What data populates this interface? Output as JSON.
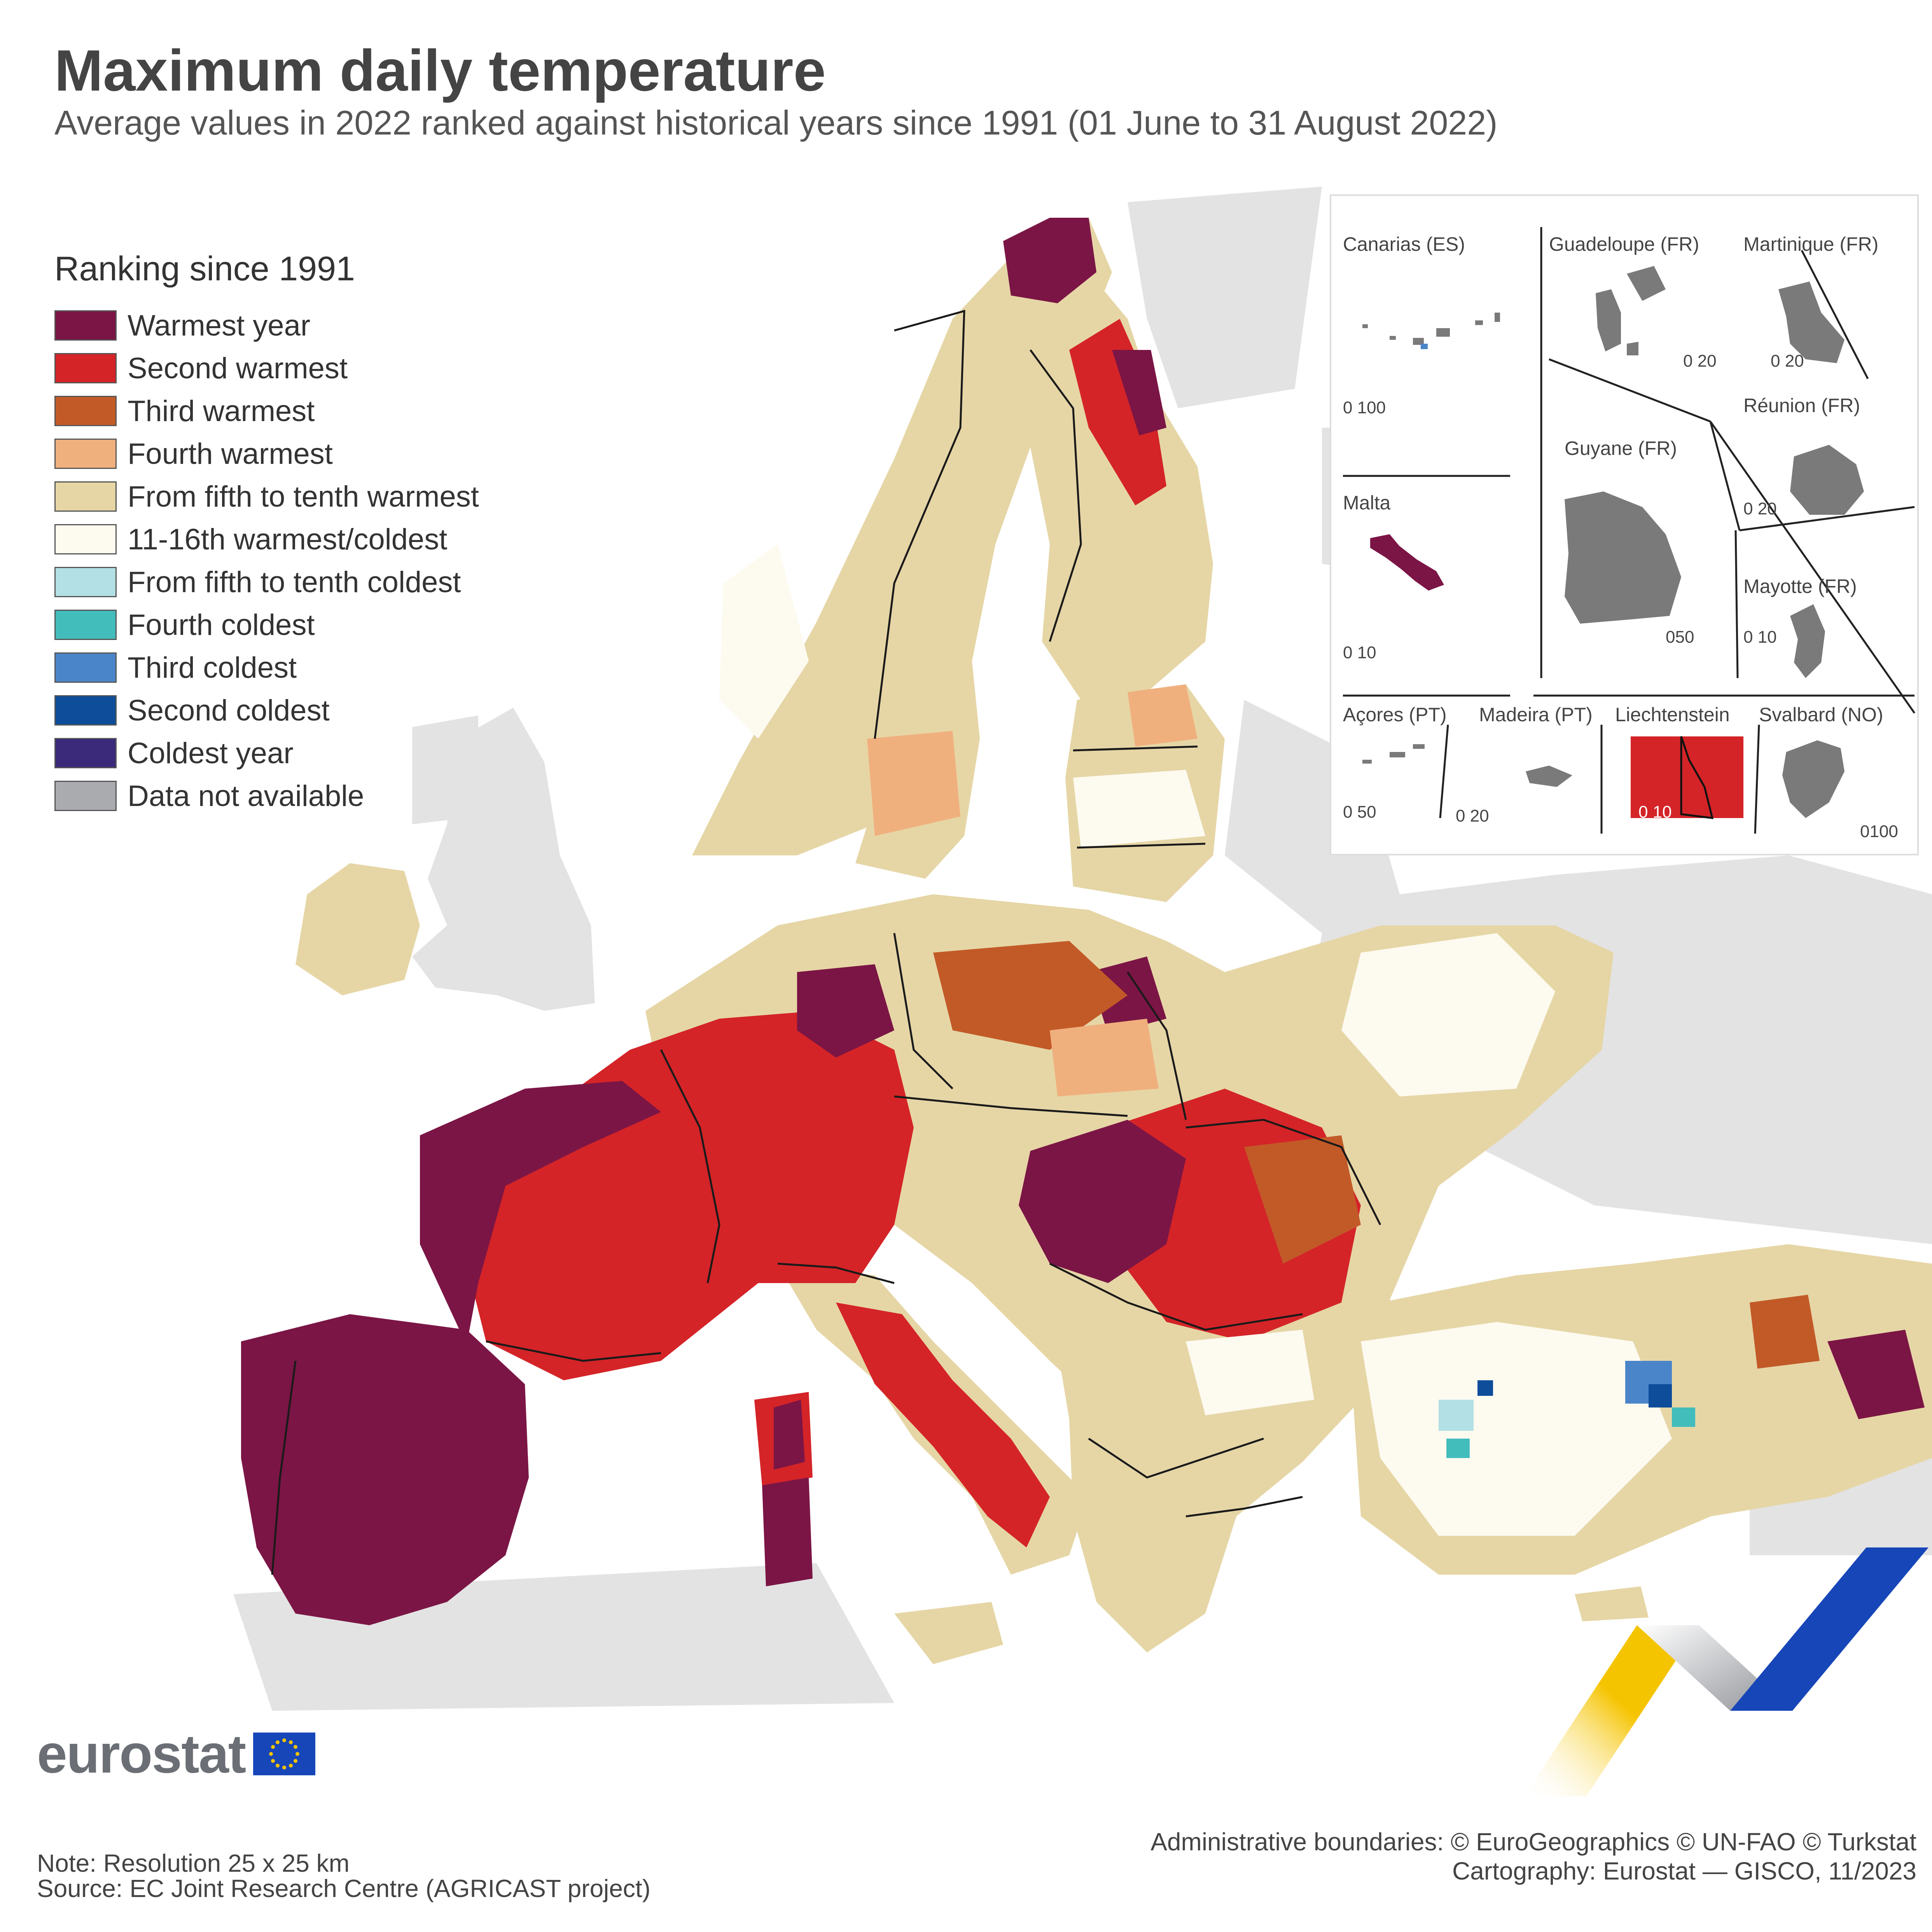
{
  "header": {
    "title": "Maximum daily temperature",
    "subtitle": "Average values in 2022 ranked against historical years since 1991 (01 June to 31 August 2022)"
  },
  "legend": {
    "title": "Ranking since 1991",
    "items": [
      {
        "label": "Warmest year",
        "color": "#7b1545"
      },
      {
        "label": "Second warmest",
        "color": "#d42428"
      },
      {
        "label": "Third warmest",
        "color": "#c25a28"
      },
      {
        "label": "Fourth warmest",
        "color": "#f0b07e"
      },
      {
        "label": "From fifth to tenth warmest",
        "color": "#e6d6a6"
      },
      {
        "label": "11-16th warmest/coldest",
        "color": "#fdfaf0"
      },
      {
        "label": "From fifth to tenth coldest",
        "color": "#b2e0e4"
      },
      {
        "label": "Fourth coldest",
        "color": "#43bcbc"
      },
      {
        "label": "Third coldest",
        "color": "#4a85c9"
      },
      {
        "label": "Second coldest",
        "color": "#0e4d9a"
      },
      {
        "label": "Coldest year",
        "color": "#3b2a7a"
      },
      {
        "label": "Data not available",
        "color": "#a9abae"
      }
    ]
  },
  "insets": {
    "canarias": {
      "label": "Canarias (ES)",
      "scale": "0  100"
    },
    "guadeloupe": {
      "label": "Guadeloupe (FR)",
      "scale": "0  20"
    },
    "martinique": {
      "label": "Martinique (FR)",
      "scale": "0    20"
    },
    "reunion": {
      "label": "Réunion (FR)",
      "scale": "0  20"
    },
    "guyane": {
      "label": "Guyane (FR)",
      "scale": "050"
    },
    "malta": {
      "label": "Malta",
      "scale": "0  10"
    },
    "mayotte": {
      "label": "Mayotte (FR)",
      "scale": "0 10"
    },
    "acores": {
      "label": "Açores (PT)",
      "scale": "0 50"
    },
    "madeira": {
      "label": "Madeira (PT)",
      "scale": "0 20"
    },
    "liechtenstein": {
      "label": "Liechtenstein",
      "scale": "0  10"
    },
    "svalbard": {
      "label": "Svalbard (NO)",
      "scale": "0100"
    }
  },
  "footer": {
    "logo_text": "eurostat",
    "note": "Note: Resolution 25 x 25 km",
    "source": "Source: EC Joint Research Centre (AGRICAST project)",
    "credits_boundaries": "Administrative boundaries: © EuroGeographics © UN-FAO © Turkstat",
    "credits_cartography": "Cartography: Eurostat — GISCO, 11/2023"
  },
  "colors": {
    "non_eu_land": "#e3e3e4",
    "sea": "#ffffff",
    "border_line": "#1a1a1a",
    "inset_grey": "#7a7a7a",
    "brand_yellow": "#f5c400",
    "brand_blue": "#1746b8"
  }
}
